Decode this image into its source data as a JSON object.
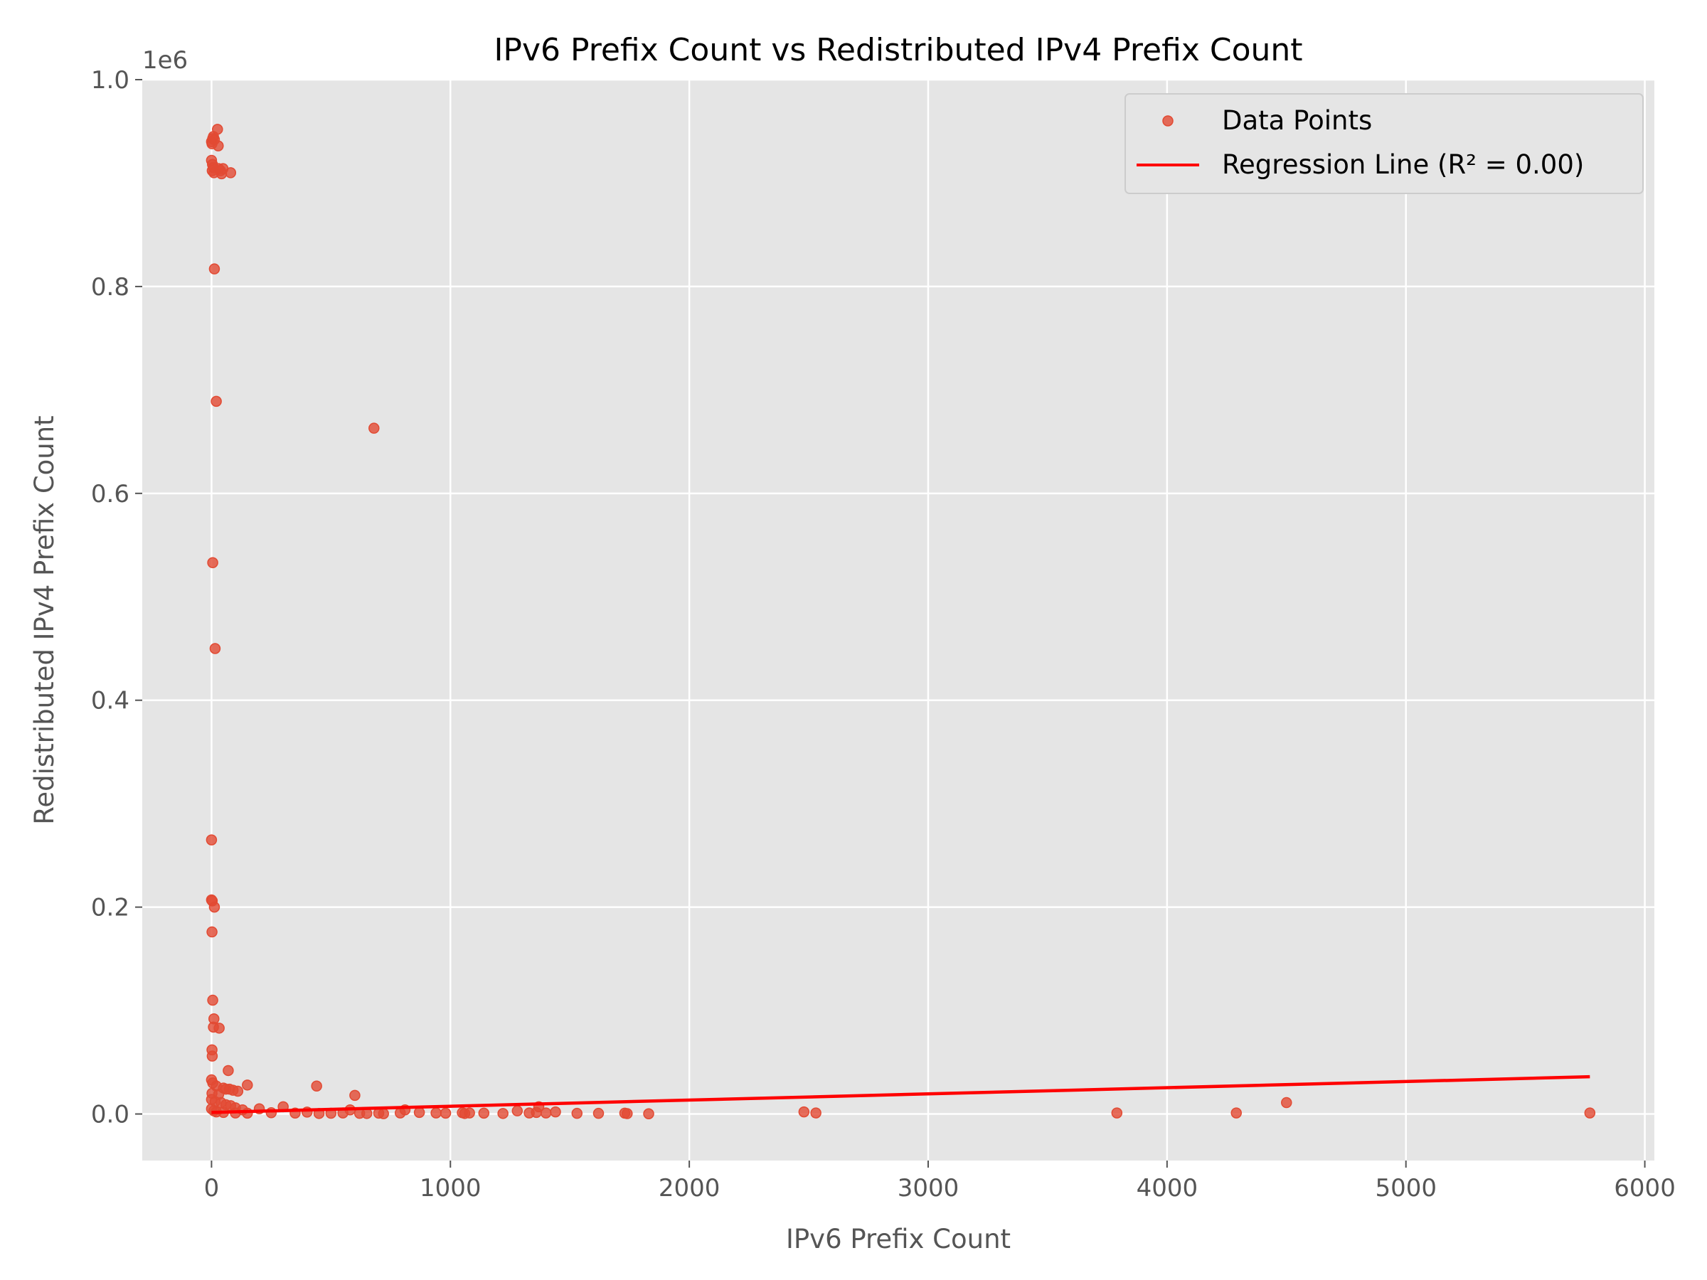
{
  "chart_data": {
    "type": "scatter",
    "title": "IPv6 Prefix Count vs Redistributed IPv4 Prefix Count",
    "xlabel": "IPv6 Prefix Count",
    "ylabel": "Redistributed IPv4 Prefix Count",
    "y_offset_label": "1e6",
    "xlim": [
      -290,
      6040
    ],
    "ylim": [
      -45000,
      1000000
    ],
    "x_ticks": [
      0,
      1000,
      2000,
      3000,
      4000,
      5000,
      6000
    ],
    "x_tick_labels": [
      "0",
      "1000",
      "2000",
      "3000",
      "4000",
      "5000",
      "6000"
    ],
    "y_ticks": [
      0,
      200000,
      400000,
      600000,
      800000,
      1000000
    ],
    "y_tick_labels": [
      "0.0",
      "0.2",
      "0.4",
      "0.6",
      "0.8",
      "1.0"
    ],
    "grid": true,
    "legend_position": "top-right",
    "colors": {
      "points": "#E24A33",
      "regression": "#FF0000",
      "plot_background": "#E5E5E5",
      "grid": "#FFFFFF"
    },
    "series": [
      {
        "name": "Data Points",
        "kind": "scatter",
        "points": [
          [
            0,
            940000
          ],
          [
            2,
            938000
          ],
          [
            5,
            943000
          ],
          [
            8,
            945000
          ],
          [
            12,
            942000
          ],
          [
            25,
            952000
          ],
          [
            28,
            936000
          ],
          [
            0,
            922000
          ],
          [
            4,
            918000
          ],
          [
            8,
            915000
          ],
          [
            3,
            912000
          ],
          [
            10,
            910000
          ],
          [
            30,
            914000
          ],
          [
            38,
            912000
          ],
          [
            42,
            909000
          ],
          [
            48,
            914000
          ],
          [
            80,
            910000
          ],
          [
            12,
            817000
          ],
          [
            20,
            689000
          ],
          [
            680,
            663000
          ],
          [
            5,
            533000
          ],
          [
            15,
            450000
          ],
          [
            0,
            265000
          ],
          [
            0,
            207000
          ],
          [
            3,
            206000
          ],
          [
            12,
            200000
          ],
          [
            2,
            176000
          ],
          [
            5,
            110000
          ],
          [
            10,
            92000
          ],
          [
            8,
            84000
          ],
          [
            32,
            83000
          ],
          [
            2,
            62000
          ],
          [
            3,
            56000
          ],
          [
            70,
            42000
          ],
          [
            0,
            33000
          ],
          [
            5,
            30000
          ],
          [
            20,
            27000
          ],
          [
            50,
            25000
          ],
          [
            60,
            24000
          ],
          [
            75,
            24000
          ],
          [
            90,
            23000
          ],
          [
            110,
            22000
          ],
          [
            150,
            28000
          ],
          [
            440,
            27000
          ],
          [
            600,
            18000
          ],
          [
            2,
            20000
          ],
          [
            30,
            19000
          ],
          [
            0,
            14000
          ],
          [
            15,
            12000
          ],
          [
            40,
            11000
          ],
          [
            60,
            9000
          ],
          [
            80,
            8000
          ],
          [
            100,
            6000
          ],
          [
            130,
            4000
          ],
          [
            200,
            5000
          ],
          [
            300,
            7000
          ],
          [
            0,
            5000
          ],
          [
            10,
            3000
          ],
          [
            20,
            2000
          ],
          [
            50,
            1500
          ],
          [
            100,
            1000
          ],
          [
            150,
            800
          ],
          [
            250,
            1200
          ],
          [
            350,
            900
          ],
          [
            400,
            1800
          ],
          [
            450,
            500
          ],
          [
            500,
            700
          ],
          [
            550,
            1000
          ],
          [
            580,
            4000
          ],
          [
            620,
            600
          ],
          [
            650,
            500
          ],
          [
            700,
            800
          ],
          [
            720,
            300
          ],
          [
            790,
            1000
          ],
          [
            810,
            4000
          ],
          [
            870,
            1500
          ],
          [
            940,
            1000
          ],
          [
            980,
            800
          ],
          [
            1050,
            1200
          ],
          [
            1060,
            500
          ],
          [
            1080,
            1000
          ],
          [
            1140,
            800
          ],
          [
            1220,
            500
          ],
          [
            1280,
            3000
          ],
          [
            1330,
            1000
          ],
          [
            1360,
            1500
          ],
          [
            1370,
            7000
          ],
          [
            1400,
            1000
          ],
          [
            1440,
            2000
          ],
          [
            1530,
            600
          ],
          [
            1620,
            600
          ],
          [
            1730,
            800
          ],
          [
            1740,
            400
          ],
          [
            1830,
            200
          ],
          [
            2480,
            2000
          ],
          [
            2530,
            1000
          ],
          [
            3790,
            1000
          ],
          [
            4290,
            1000
          ],
          [
            4500,
            11000
          ],
          [
            5770,
            1000
          ]
        ]
      },
      {
        "name": "Regression Line (R² = 0.00)",
        "kind": "line",
        "points": [
          [
            0,
            1500
          ],
          [
            5770,
            36000
          ]
        ]
      }
    ]
  }
}
